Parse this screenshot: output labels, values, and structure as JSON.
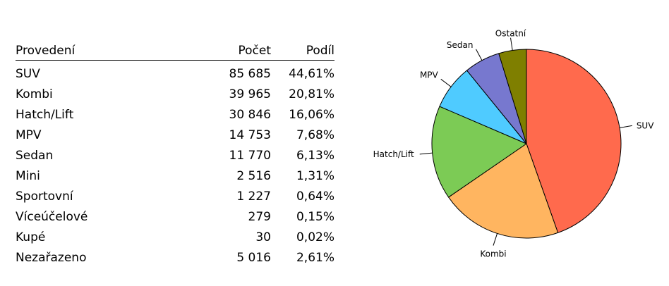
{
  "table": {
    "headers": {
      "name": "Provedení",
      "count": "Počet",
      "share": "Podíl"
    },
    "rows": [
      {
        "name": "SUV",
        "count": "85 685",
        "share": "44,61%"
      },
      {
        "name": "Kombi",
        "count": "39 965",
        "share": "20,81%"
      },
      {
        "name": "Hatch/Lift",
        "count": "30 846",
        "share": "16,06%"
      },
      {
        "name": "MPV",
        "count": "14 753",
        "share": "7,68%"
      },
      {
        "name": "Sedan",
        "count": "11 770",
        "share": "6,13%"
      },
      {
        "name": "Mini",
        "count": "2 516",
        "share": "1,31%"
      },
      {
        "name": "Sportovní",
        "count": "1 227",
        "share": "0,64%"
      },
      {
        "name": "Víceúčelové",
        "count": "279",
        "share": "0,15%"
      },
      {
        "name": "Kupé",
        "count": "30",
        "share": "0,02%"
      },
      {
        "name": "Nezařazeno",
        "count": "5 016",
        "share": "2,61%"
      }
    ]
  },
  "chart_data": {
    "type": "pie",
    "title": "",
    "start_angle_deg": 0,
    "direction": "clockwise",
    "slices": [
      {
        "label": "SUV",
        "value": 44.61,
        "color": "#FF6A4D"
      },
      {
        "label": "Kombi",
        "value": 20.81,
        "color": "#FFB560"
      },
      {
        "label": "Hatch/Lift",
        "value": 16.06,
        "color": "#7CCB55"
      },
      {
        "label": "MPV",
        "value": 7.68,
        "color": "#4FCBFF"
      },
      {
        "label": "Sedan",
        "value": 6.13,
        "color": "#7778CF"
      },
      {
        "label": "Ostatní",
        "value": 4.73,
        "color": "#7F7F00"
      }
    ]
  }
}
